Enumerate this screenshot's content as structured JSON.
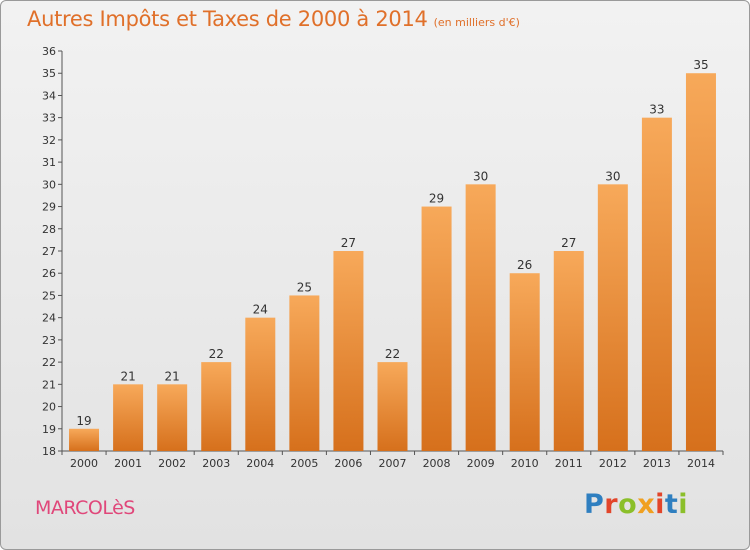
{
  "header": {
    "title": "Autres Impôts et Taxes de 2000 à 2014",
    "subtitle": "(en milliers d'€)"
  },
  "footer": {
    "commune": "MARCOLèS",
    "brand": [
      "P",
      "r",
      "o",
      "x",
      "i",
      "t",
      "i"
    ]
  },
  "colors": {
    "bar_top": "#f7a95a",
    "bar_bottom": "#d6701c",
    "title": "#e0702a",
    "commune": "#e0477a"
  },
  "chart_data": {
    "type": "bar",
    "title": "Autres Impôts et Taxes de 2000 à 2014",
    "subtitle": "(en milliers d'€)",
    "categories": [
      "2000",
      "2001",
      "2002",
      "2003",
      "2004",
      "2005",
      "2006",
      "2007",
      "2008",
      "2009",
      "2010",
      "2011",
      "2012",
      "2013",
      "2014"
    ],
    "values": [
      19,
      21,
      21,
      22,
      24,
      25,
      27,
      22,
      29,
      30,
      26,
      27,
      30,
      33,
      35
    ],
    "ylim": [
      18,
      36
    ],
    "yticks": [
      18,
      19,
      20,
      21,
      22,
      23,
      24,
      25,
      26,
      27,
      28,
      29,
      30,
      31,
      32,
      33,
      34,
      35,
      36
    ],
    "grid": false,
    "legend": "none"
  }
}
